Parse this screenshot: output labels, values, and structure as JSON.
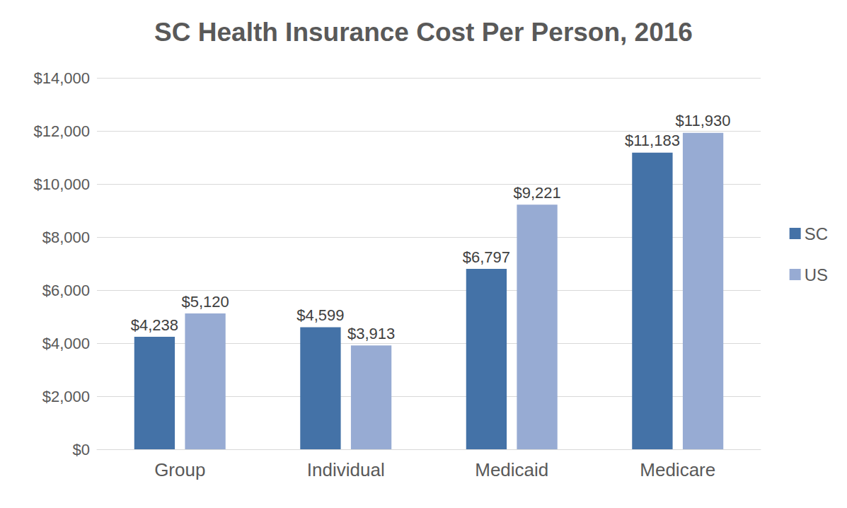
{
  "chart_data": {
    "type": "bar",
    "title": "SC Health Insurance Cost Per Person, 2016",
    "categories": [
      "Group",
      "Individual",
      "Medicaid",
      "Medicare"
    ],
    "series": [
      {
        "name": "SC",
        "color": "#4472a7",
        "values": [
          4238,
          4599,
          6797,
          11183
        ],
        "value_labels": [
          "$4,238",
          "$4,599",
          "$6,797",
          "$11,183"
        ]
      },
      {
        "name": "US",
        "color": "#97abd3",
        "values": [
          5120,
          3913,
          9221,
          11930
        ],
        "value_labels": [
          "$5,120",
          "$3,913",
          "$9,221",
          "$11,930"
        ]
      }
    ],
    "ylim": [
      0,
      14000
    ],
    "yticks": [
      {
        "value": 0,
        "label": "$0"
      },
      {
        "value": 2000,
        "label": "$2,000"
      },
      {
        "value": 4000,
        "label": "$4,000"
      },
      {
        "value": 6000,
        "label": "$6,000"
      },
      {
        "value": 8000,
        "label": "$8,000"
      },
      {
        "value": 10000,
        "label": "$10,000"
      },
      {
        "value": 12000,
        "label": "$12,000"
      },
      {
        "value": 14000,
        "label": "$14,000"
      }
    ],
    "grid": true,
    "legend": "right",
    "data_labels": true
  }
}
